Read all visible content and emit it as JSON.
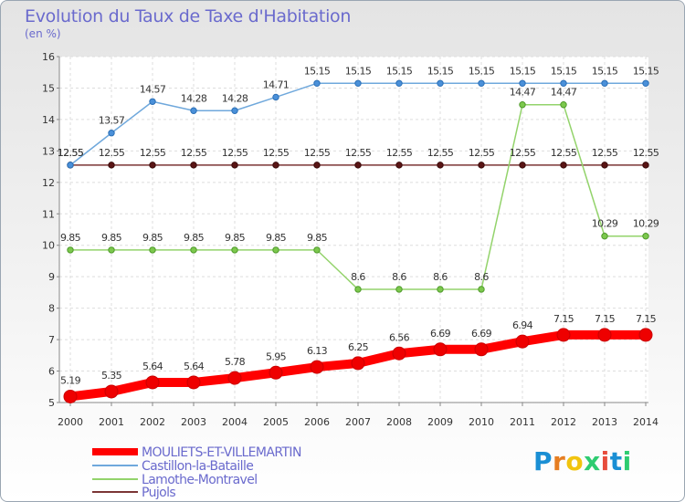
{
  "title": "Evolution du Taux de Taxe d'Habitation",
  "unit_label": "(en %)",
  "logo_text": "Proxiti",
  "logo_colors": [
    "#1a8fd4",
    "#e67e22",
    "#f1c40f",
    "#2ecc71",
    "#e74c3c",
    "#1a8fd4",
    "#2ecc71"
  ],
  "chart_data": {
    "type": "line",
    "title": "Evolution du Taux de Taxe d'Habitation",
    "ylabel": "(en %)",
    "xlabel": "",
    "x": [
      "2000",
      "2001",
      "2002",
      "2003",
      "2004",
      "2005",
      "2006",
      "2007",
      "2008",
      "2009",
      "2010",
      "2011",
      "2012",
      "2013",
      "2014"
    ],
    "ylim": [
      5,
      16
    ],
    "yticks": [
      5,
      6,
      7,
      8,
      9,
      10,
      11,
      12,
      13,
      14,
      15,
      16
    ],
    "grid": true,
    "legend_position": "bottom-left",
    "series": [
      {
        "name": "MOULIETS-ET-VILLEMARTIN",
        "color": "#ff0000",
        "values": [
          5.19,
          5.35,
          5.64,
          5.64,
          5.78,
          5.95,
          6.13,
          6.25,
          6.56,
          6.69,
          6.69,
          6.94,
          7.15,
          7.15,
          7.15
        ],
        "labels": [
          "5.19",
          "5.35",
          "5.64",
          "5.64",
          "5.78",
          "5.95",
          "6.13",
          "6.25",
          "6.56",
          "6.69",
          "6.69",
          "6.94",
          "7.15",
          "7.15",
          "7.15"
        ]
      },
      {
        "name": "Castillon-la-Bataille",
        "color": "#6fa8dc",
        "values": [
          12.55,
          13.57,
          14.57,
          14.28,
          14.28,
          14.71,
          15.15,
          15.15,
          15.15,
          15.15,
          15.15,
          15.15,
          15.15,
          15.15,
          15.15
        ],
        "labels": [
          "12.55",
          "13.57",
          "14.57",
          "14.28",
          "14.28",
          "14.71",
          "15.15",
          "15.15",
          "15.15",
          "15.15",
          "15.15",
          "15.15",
          "15.15",
          "15.15",
          "15.15"
        ]
      },
      {
        "name": "Lamothe-Montravel",
        "color": "#93d36b",
        "values": [
          9.85,
          9.85,
          9.85,
          9.85,
          9.85,
          9.85,
          9.85,
          8.6,
          8.6,
          8.6,
          8.6,
          14.47,
          14.47,
          10.29,
          10.29
        ],
        "labels": [
          "9.85",
          "9.85",
          "9.85",
          "9.85",
          "9.85",
          "9.85",
          "9.85",
          "8.6",
          "8.6",
          "8.6",
          "8.6",
          "14.47",
          "14.47",
          "10.29",
          "10.29"
        ]
      },
      {
        "name": "Pujols",
        "color": "#7b3535",
        "values": [
          12.55,
          12.55,
          12.55,
          12.55,
          12.55,
          12.55,
          12.55,
          12.55,
          12.55,
          12.55,
          12.55,
          12.55,
          12.55,
          12.55,
          12.55
        ],
        "labels": [
          "12.55",
          "12.55",
          "12.55",
          "12.55",
          "12.55",
          "12.55",
          "12.55",
          "12.55",
          "12.55",
          "12.55",
          "12.55",
          "12.55",
          "12.55",
          "12.55",
          "12.55"
        ]
      }
    ]
  }
}
